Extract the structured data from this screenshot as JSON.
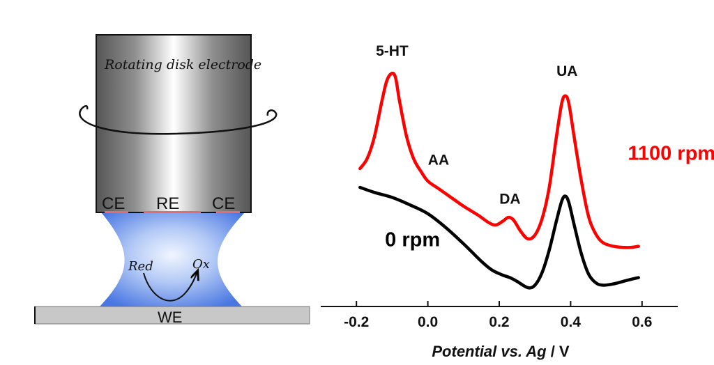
{
  "schematic": {
    "electrode_title": "Rotating disk electrode",
    "ring_labels": [
      "CE",
      "RE",
      "CE"
    ],
    "working_electrode_label": "WE",
    "red_label": "Red",
    "ox_label": "Ox"
  },
  "chart_data": {
    "type": "line",
    "xlabel_italic": "Potential vs. Ag",
    "xlabel_unit": " / V",
    "xlim": [
      -0.3,
      0.7
    ],
    "x_ticks": [
      -0.2,
      0.0,
      0.2,
      0.4,
      0.6
    ],
    "x_tick_labels": [
      "-0.2",
      "0.0",
      "0.2",
      "0.4",
      "0.6"
    ],
    "grid": false,
    "series": [
      {
        "name": "1100 rpm",
        "color": "#ff0000",
        "points": [
          [
            -0.19,
            0.1
          ],
          [
            -0.17,
            0.18
          ],
          [
            -0.15,
            0.35
          ],
          [
            -0.13,
            0.62
          ],
          [
            -0.115,
            0.8
          ],
          [
            -0.1,
            0.86
          ],
          [
            -0.09,
            0.82
          ],
          [
            -0.08,
            0.65
          ],
          [
            -0.06,
            0.36
          ],
          [
            -0.04,
            0.18
          ],
          [
            -0.02,
            0.08
          ],
          [
            0.0,
            0.0
          ],
          [
            0.03,
            -0.06
          ],
          [
            0.06,
            -0.12
          ],
          [
            0.1,
            -0.2
          ],
          [
            0.14,
            -0.27
          ],
          [
            0.17,
            -0.33
          ],
          [
            0.19,
            -0.35
          ],
          [
            0.21,
            -0.32
          ],
          [
            0.225,
            -0.29
          ],
          [
            0.24,
            -0.31
          ],
          [
            0.26,
            -0.4
          ],
          [
            0.28,
            -0.46
          ],
          [
            0.3,
            -0.43
          ],
          [
            0.32,
            -0.3
          ],
          [
            0.34,
            -0.05
          ],
          [
            0.36,
            0.35
          ],
          [
            0.375,
            0.62
          ],
          [
            0.385,
            0.68
          ],
          [
            0.395,
            0.62
          ],
          [
            0.41,
            0.35
          ],
          [
            0.43,
            0.0
          ],
          [
            0.45,
            -0.28
          ],
          [
            0.47,
            -0.42
          ],
          [
            0.49,
            -0.49
          ],
          [
            0.52,
            -0.52
          ],
          [
            0.56,
            -0.53
          ],
          [
            0.59,
            -0.52
          ]
        ]
      },
      {
        "name": "0 rpm",
        "color": "#000000",
        "points": [
          [
            -0.19,
            -0.05
          ],
          [
            -0.15,
            -0.09
          ],
          [
            -0.1,
            -0.13
          ],
          [
            -0.05,
            -0.19
          ],
          [
            0.0,
            -0.26
          ],
          [
            0.05,
            -0.37
          ],
          [
            0.1,
            -0.5
          ],
          [
            0.15,
            -0.64
          ],
          [
            0.18,
            -0.71
          ],
          [
            0.21,
            -0.75
          ],
          [
            0.23,
            -0.77
          ],
          [
            0.25,
            -0.8
          ],
          [
            0.28,
            -0.85
          ],
          [
            0.3,
            -0.83
          ],
          [
            0.32,
            -0.73
          ],
          [
            0.34,
            -0.55
          ],
          [
            0.36,
            -0.32
          ],
          [
            0.375,
            -0.16
          ],
          [
            0.385,
            -0.12
          ],
          [
            0.395,
            -0.17
          ],
          [
            0.41,
            -0.35
          ],
          [
            0.43,
            -0.58
          ],
          [
            0.45,
            -0.74
          ],
          [
            0.47,
            -0.81
          ],
          [
            0.49,
            -0.83
          ],
          [
            0.52,
            -0.82
          ],
          [
            0.56,
            -0.79
          ],
          [
            0.59,
            -0.77
          ]
        ]
      }
    ],
    "ylim": [
      -1.0,
      1.0
    ],
    "annotations": [
      {
        "text": "5-HT",
        "x": -0.1,
        "y": 1.0
      },
      {
        "text": "AA",
        "x": 0.03,
        "y": 0.13
      },
      {
        "text": "DA",
        "x": 0.23,
        "y": -0.18
      },
      {
        "text": "UA",
        "x": 0.39,
        "y": 0.84
      }
    ],
    "series_labels": [
      {
        "text": "1100 rpm",
        "color": "#ff0000",
        "x": 0.56,
        "y": 0.17
      },
      {
        "text": "0 rpm",
        "color": "#000000",
        "x": -0.12,
        "y": -0.52
      }
    ]
  }
}
